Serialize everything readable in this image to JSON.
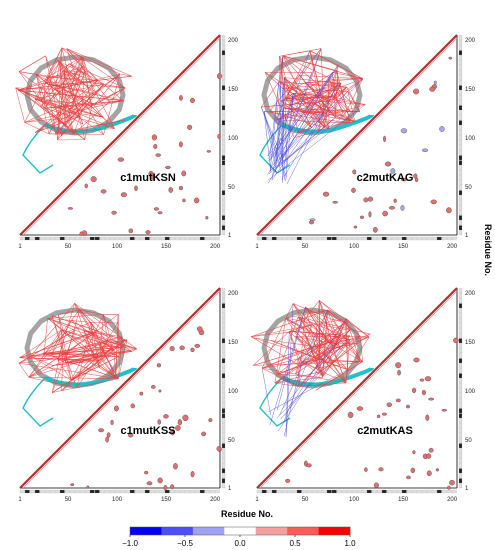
{
  "figure": {
    "panels": [
      {
        "label": "c1mutKSN",
        "network": "red"
      },
      {
        "label": "c2mutKAG",
        "network": "blue-heavy"
      },
      {
        "label": "c1mutKSS",
        "network": "red"
      },
      {
        "label": "c2mutKAS",
        "network": "red-blue"
      }
    ],
    "axis_ticks": [
      "1",
      "50",
      "100",
      "150",
      "200"
    ],
    "axis_tick_values": [
      1,
      50,
      100,
      150,
      200
    ],
    "xlabel": "Residue No.",
    "ylabel": "Residue No.",
    "colorbar": {
      "ticks": [
        "−1.0",
        "−0.5",
        "0.0",
        "0.5",
        "1.0"
      ],
      "colors": [
        "#0000ff",
        "#4d4dff",
        "#a0a0f5",
        "#ffffff",
        "#f5a0a0",
        "#ff5a5a",
        "#ff0000"
      ]
    },
    "colors": {
      "positive": "#e84040",
      "negative": "#4a4ad8",
      "helix": "#9a9a9a",
      "strand": "#20c0c8"
    }
  }
}
